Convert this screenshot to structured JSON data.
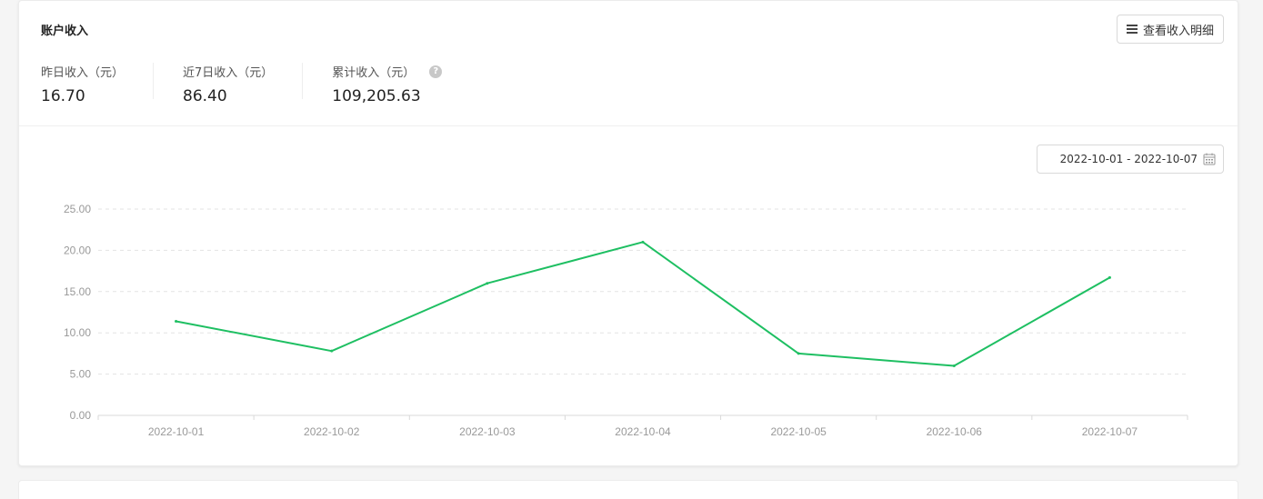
{
  "header": {
    "title": "账户收入",
    "detail_button_label": "查看收入明细"
  },
  "stats": [
    {
      "label": "昨日收入（元）",
      "value": "16.70"
    },
    {
      "label": "近7日收入（元）",
      "value": "86.40"
    },
    {
      "label": "累计收入（元）",
      "value": "109,205.63",
      "help_icon": "question-icon"
    }
  ],
  "date_range": {
    "value": "2022-10-01 - 2022-10-07",
    "icon": "calendar-icon"
  },
  "colors": {
    "line": "#1ebf62",
    "grid": "#e3e3e3",
    "axis": "#d9d9d9"
  },
  "chart_data": {
    "type": "line",
    "categories": [
      "2022-10-01",
      "2022-10-02",
      "2022-10-03",
      "2022-10-04",
      "2022-10-05",
      "2022-10-06",
      "2022-10-07"
    ],
    "values": [
      11.4,
      7.8,
      16.0,
      21.0,
      7.5,
      6.0,
      16.7
    ],
    "yticks": [
      "0.00",
      "5.00",
      "10.00",
      "15.00",
      "20.00",
      "25.00"
    ],
    "ylim": [
      0,
      25
    ],
    "grid": true,
    "title": "",
    "xlabel": "",
    "ylabel": ""
  }
}
